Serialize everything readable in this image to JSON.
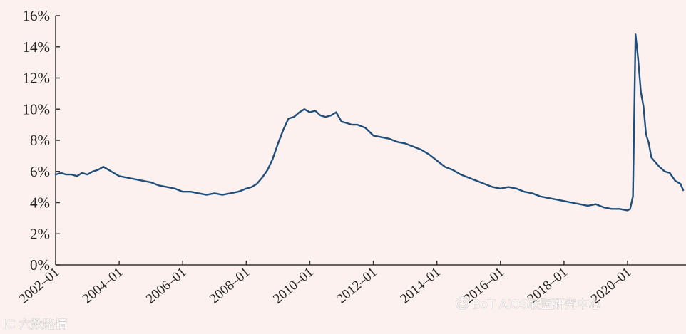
{
  "chart_data": {
    "type": "line",
    "title": "",
    "xlabel": "",
    "ylabel": "",
    "ylim": [
      0,
      16
    ],
    "y_tick_labels": [
      "0%",
      "2%",
      "4%",
      "6%",
      "8%",
      "10%",
      "12%",
      "14%",
      "16%"
    ],
    "y_ticks": [
      0,
      2,
      4,
      6,
      8,
      10,
      12,
      14,
      16
    ],
    "x_tick_labels": [
      "2002–01",
      "2004–01",
      "2006–01",
      "2008–01",
      "2010–01",
      "2012–01",
      "2014–01",
      "2016–01",
      "2018–01",
      "2020–01"
    ],
    "x_ticks": [
      2002,
      2004,
      2006,
      2008,
      2010,
      2012,
      2014,
      2016,
      2018,
      2020
    ],
    "xlim": [
      2002,
      2021.75
    ],
    "grid": false,
    "legend": "none",
    "line_color": "#1f4e7a",
    "series": [
      {
        "x": [
          2002.0,
          2002.17,
          2002.33,
          2002.5,
          2002.67,
          2002.83,
          2003.0,
          2003.17,
          2003.33,
          2003.5,
          2003.67,
          2003.83,
          2004.0,
          2004.25,
          2004.5,
          2004.75,
          2005.0,
          2005.25,
          2005.5,
          2005.75,
          2006.0,
          2006.25,
          2006.5,
          2006.75,
          2007.0,
          2007.25,
          2007.5,
          2007.75,
          2008.0,
          2008.17,
          2008.33,
          2008.5,
          2008.67,
          2008.83,
          2009.0,
          2009.17,
          2009.33,
          2009.5,
          2009.67,
          2009.83,
          2010.0,
          2010.17,
          2010.33,
          2010.5,
          2010.67,
          2010.83,
          2011.0,
          2011.17,
          2011.33,
          2011.5,
          2011.75,
          2012.0,
          2012.25,
          2012.5,
          2012.75,
          2013.0,
          2013.25,
          2013.5,
          2013.75,
          2014.0,
          2014.25,
          2014.5,
          2014.75,
          2015.0,
          2015.25,
          2015.5,
          2015.75,
          2016.0,
          2016.25,
          2016.5,
          2016.75,
          2017.0,
          2017.25,
          2017.5,
          2017.75,
          2018.0,
          2018.25,
          2018.5,
          2018.75,
          2019.0,
          2019.25,
          2019.5,
          2019.75,
          2020.0,
          2020.08,
          2020.17,
          2020.25,
          2020.33,
          2020.42,
          2020.5,
          2020.58,
          2020.67,
          2020.75,
          2020.83,
          2021.0,
          2021.17,
          2021.33,
          2021.5,
          2021.67,
          2021.75
        ],
        "values": [
          5.8,
          5.9,
          5.8,
          5.8,
          5.7,
          5.9,
          5.8,
          6.0,
          6.1,
          6.3,
          6.1,
          5.9,
          5.7,
          5.6,
          5.5,
          5.4,
          5.3,
          5.1,
          5.0,
          4.9,
          4.7,
          4.7,
          4.6,
          4.5,
          4.6,
          4.5,
          4.6,
          4.7,
          4.9,
          5.0,
          5.2,
          5.6,
          6.1,
          6.8,
          7.8,
          8.7,
          9.4,
          9.5,
          9.8,
          10.0,
          9.8,
          9.9,
          9.6,
          9.5,
          9.6,
          9.8,
          9.2,
          9.1,
          9.0,
          9.0,
          8.8,
          8.3,
          8.2,
          8.1,
          7.9,
          7.8,
          7.6,
          7.4,
          7.1,
          6.7,
          6.3,
          6.1,
          5.8,
          5.6,
          5.4,
          5.2,
          5.0,
          4.9,
          5.0,
          4.9,
          4.7,
          4.6,
          4.4,
          4.3,
          4.2,
          4.1,
          4.0,
          3.9,
          3.8,
          3.9,
          3.7,
          3.6,
          3.6,
          3.5,
          3.6,
          4.4,
          14.8,
          13.3,
          11.1,
          10.2,
          8.4,
          7.8,
          6.9,
          6.7,
          6.3,
          6.0,
          5.9,
          5.4,
          5.2,
          4.8
        ]
      }
    ]
  },
  "watermarks": {
    "left": "IC 六数路情",
    "right": "BoT AIOS联盟研究中心"
  }
}
